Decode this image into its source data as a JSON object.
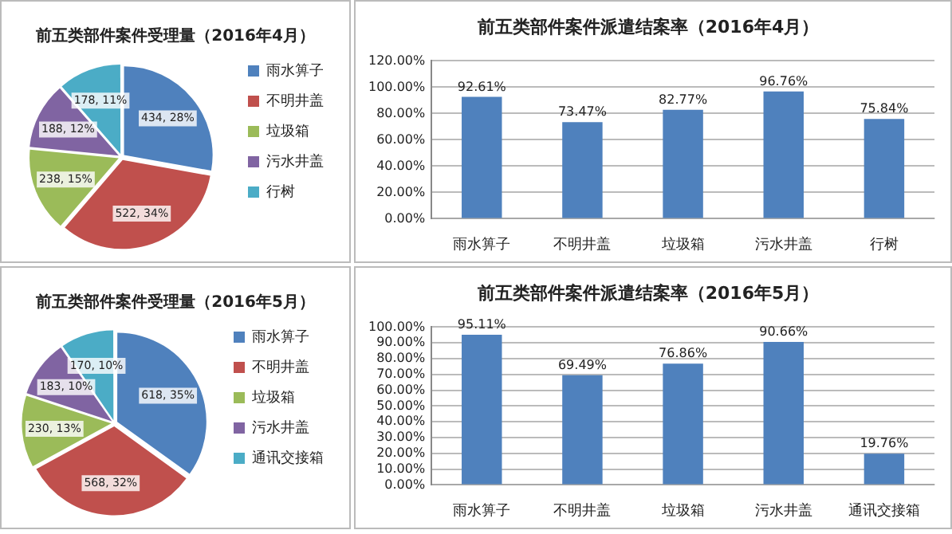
{
  "chart_data": [
    {
      "type": "pie",
      "title": "前五类部件案件受理量（2016年4月）",
      "categories": [
        "雨水箅子",
        "不明井盖",
        "垃圾箱",
        "污水井盖",
        "行树"
      ],
      "values": [
        434,
        522,
        238,
        188,
        178
      ],
      "value_labels": [
        "434, 28%",
        "522, 34%",
        "238, 15%",
        "188, 12%",
        "178, 11%"
      ],
      "colors": [
        "#4f81bd",
        "#c0504d",
        "#9bbb59",
        "#8064a2",
        "#4bacc6"
      ],
      "legend": "right"
    },
    {
      "type": "bar",
      "title": "前五类部件案件派遣结案率（2016年4月）",
      "categories": [
        "雨水箅子",
        "不明井盖",
        "垃圾箱",
        "污水井盖",
        "行树"
      ],
      "values": [
        92.61,
        73.47,
        82.77,
        96.76,
        75.84
      ],
      "value_labels": [
        "92.61%",
        "73.47%",
        "82.77%",
        "96.76%",
        "75.84%"
      ],
      "color": "#4f81bd",
      "ylim": [
        0,
        120
      ],
      "yticks": [
        {
          "value": 0,
          "label": "0.00%"
        },
        {
          "value": 20,
          "label": "20.00%"
        },
        {
          "value": 40,
          "label": "40.00%"
        },
        {
          "value": 60,
          "label": "60.00%"
        },
        {
          "value": 80,
          "label": "80.00%"
        },
        {
          "value": 100,
          "label": "100.00%"
        },
        {
          "value": 120,
          "label": "120.00%"
        }
      ],
      "grid": "y",
      "legend": false
    },
    {
      "type": "pie",
      "title": "前五类部件案件受理量（2016年5月）",
      "categories": [
        "雨水箅子",
        "不明井盖",
        "垃圾箱",
        "污水井盖",
        "通讯交接箱"
      ],
      "values": [
        618,
        568,
        230,
        183,
        170
      ],
      "value_labels": [
        "618, 35%",
        "568, 32%",
        "230, 13%",
        "183, 10%",
        "170, 10%"
      ],
      "colors": [
        "#4f81bd",
        "#c0504d",
        "#9bbb59",
        "#8064a2",
        "#4bacc6"
      ],
      "legend": "right"
    },
    {
      "type": "bar",
      "title": "前五类部件案件派遣结案率（2016年5月）",
      "categories": [
        "雨水箅子",
        "不明井盖",
        "垃圾箱",
        "污水井盖",
        "通讯交接箱"
      ],
      "values": [
        95.11,
        69.49,
        76.86,
        90.66,
        19.76
      ],
      "value_labels": [
        "95.11%",
        "69.49%",
        "76.86%",
        "90.66%",
        "19.76%"
      ],
      "color": "#4f81bd",
      "ylim": [
        0,
        100
      ],
      "yticks": [
        {
          "value": 0,
          "label": "0.00%"
        },
        {
          "value": 10,
          "label": "10.00%"
        },
        {
          "value": 20,
          "label": "20.00%"
        },
        {
          "value": 30,
          "label": "30.00%"
        },
        {
          "value": 40,
          "label": "40.00%"
        },
        {
          "value": 50,
          "label": "50.00%"
        },
        {
          "value": 60,
          "label": "60.00%"
        },
        {
          "value": 70,
          "label": "70.00%"
        },
        {
          "value": 80,
          "label": "80.00%"
        },
        {
          "value": 90,
          "label": "90.00%"
        },
        {
          "value": 100,
          "label": "100.00%"
        }
      ],
      "grid": "y",
      "legend": false
    }
  ]
}
